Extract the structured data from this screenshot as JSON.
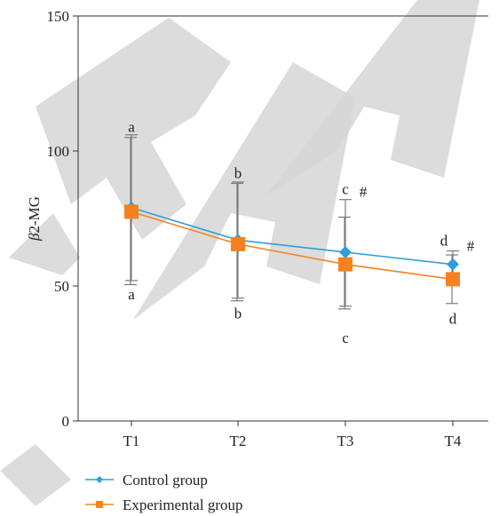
{
  "chart_data": {
    "type": "line",
    "title": "",
    "xlabel": "",
    "ylabel": "β2-MG",
    "ylabel_italic": "β",
    "ylabel_rest": "2-MG",
    "categories": [
      "T1",
      "T2",
      "T3",
      "T4"
    ],
    "ylim": [
      0,
      150
    ],
    "yticks": [
      0,
      50,
      100,
      150
    ],
    "grid": false,
    "legend_position": "bottom-left",
    "series": [
      {
        "name": "Control group",
        "color": "#2e9fdc",
        "marker": "diamond",
        "values": [
          79,
          67,
          62.5,
          58
        ],
        "err_upper": [
          106,
          88.5,
          82,
          63
        ],
        "err_lower": [
          52,
          45.5,
          42.5,
          53
        ]
      },
      {
        "name": "Experimental group",
        "color": "#f5821f",
        "marker": "square",
        "values": [
          77.5,
          65.5,
          58,
          52.5
        ],
        "err_upper": [
          105,
          88,
          75.5,
          61.5
        ],
        "err_lower": [
          50.5,
          44.5,
          41.5,
          43.5
        ]
      }
    ],
    "annotations": [
      {
        "category": "T1",
        "text": "a",
        "y": 107
      },
      {
        "category": "T1",
        "text": "a",
        "y": 45
      },
      {
        "category": "T2",
        "text": "b",
        "y": 90
      },
      {
        "category": "T2",
        "text": "b",
        "y": 38
      },
      {
        "category": "T3",
        "text": "c",
        "y": 84
      },
      {
        "category": "T3",
        "text": "#",
        "y": 83
      },
      {
        "category": "T3",
        "text": "c",
        "y": 29
      },
      {
        "category": "T4",
        "text": "d",
        "y": 65
      },
      {
        "category": "T4",
        "text": "#",
        "y": 63
      },
      {
        "category": "T4",
        "text": "d",
        "y": 36
      }
    ]
  },
  "watermark": {
    "text": "RETRACTED"
  }
}
